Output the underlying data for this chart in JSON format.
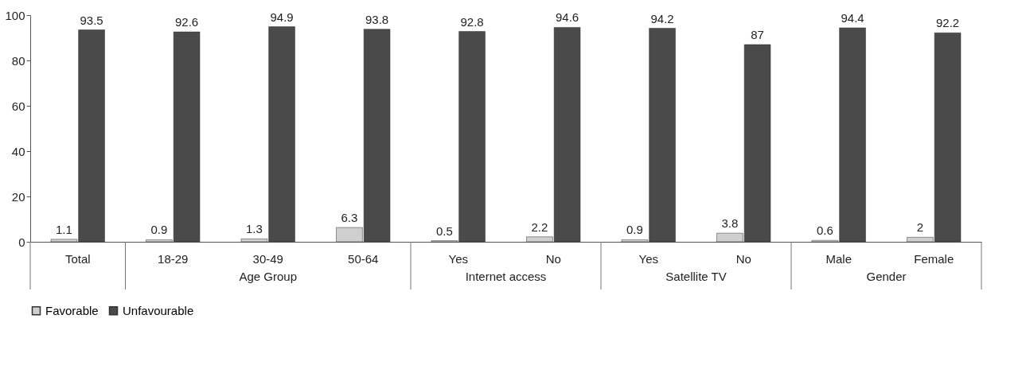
{
  "chart_data": {
    "type": "bar",
    "categories": [
      "Total",
      "18-29",
      "30-49",
      "50-64",
      "Yes",
      "No",
      "Yes",
      "No",
      "Male",
      "Female"
    ],
    "series": [
      {
        "name": "Favorable",
        "color": "#cfcfcf",
        "values": [
          1.1,
          0.9,
          1.3,
          6.3,
          0.5,
          2.2,
          0.9,
          3.8,
          0.6,
          2
        ]
      },
      {
        "name": "Unfavourable",
        "color": "#4a4a4a",
        "values": [
          93.5,
          92.6,
          94.9,
          93.8,
          92.8,
          94.6,
          94.2,
          87,
          94.4,
          92.2
        ]
      }
    ],
    "ylim": [
      0,
      100
    ],
    "yticks": [
      0,
      20,
      40,
      60,
      80,
      100
    ],
    "grid": false,
    "legend": "bottom",
    "data_labels": true,
    "annotations": [
      "Age Group",
      "Internet access",
      "Satellite TV",
      "Gender"
    ]
  }
}
